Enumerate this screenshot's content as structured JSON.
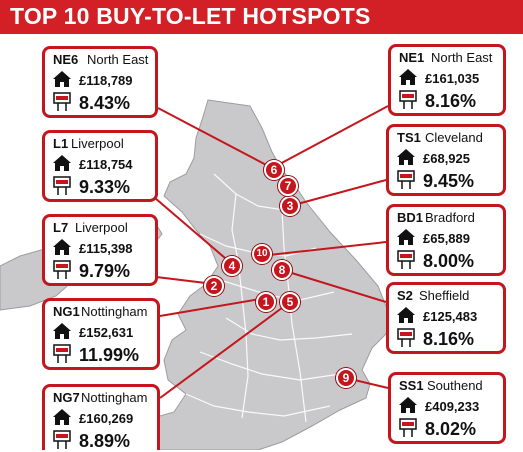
{
  "title": "TOP 10 BUY-TO-LET HOTSPOTS",
  "colors": {
    "accent": "#c4161c",
    "land": "#c9c9cb",
    "sea": "#ffffff",
    "text": "#111111"
  },
  "icons": {
    "price": "house-icon",
    "yield": "for-sale-sign-icon"
  },
  "hotspots": [
    {
      "rank": "1",
      "code": "L1",
      "city": "Liverpool",
      "price": "£118,754",
      "yield": "9.33%"
    },
    {
      "rank": "2",
      "code": "NE6",
      "city": "North East",
      "price": "£118,789",
      "yield": "8.43%"
    },
    {
      "rank": "3",
      "code": "TS1",
      "city": "Cleveland",
      "price": "£68,925",
      "yield": "9.45%"
    },
    {
      "rank": "4",
      "code": "L7",
      "city": "Liverpool",
      "price": "£115,398",
      "yield": "9.79%"
    },
    {
      "rank": "5",
      "code": "NG1",
      "city": "Nottingham",
      "price": "£152,631",
      "yield": "11.99%"
    },
    {
      "rank": "6",
      "code": "NE1",
      "city": "North East",
      "price": "£161,035",
      "yield": "8.16%"
    },
    {
      "rank": "7",
      "code": "NG7",
      "city": "Nottingham",
      "price": "£160,269",
      "yield": "8.89%"
    },
    {
      "rank": "8",
      "code": "S2",
      "city": "Sheffield",
      "price": "£125,483",
      "yield": "8.16%"
    },
    {
      "rank": "9",
      "code": "SS1",
      "city": "Southend",
      "price": "£409,233",
      "yield": "8.02%"
    },
    {
      "rank": "10",
      "code": "BD1",
      "city": "Bradford",
      "price": "£65,889",
      "yield": "8.00%"
    }
  ]
}
